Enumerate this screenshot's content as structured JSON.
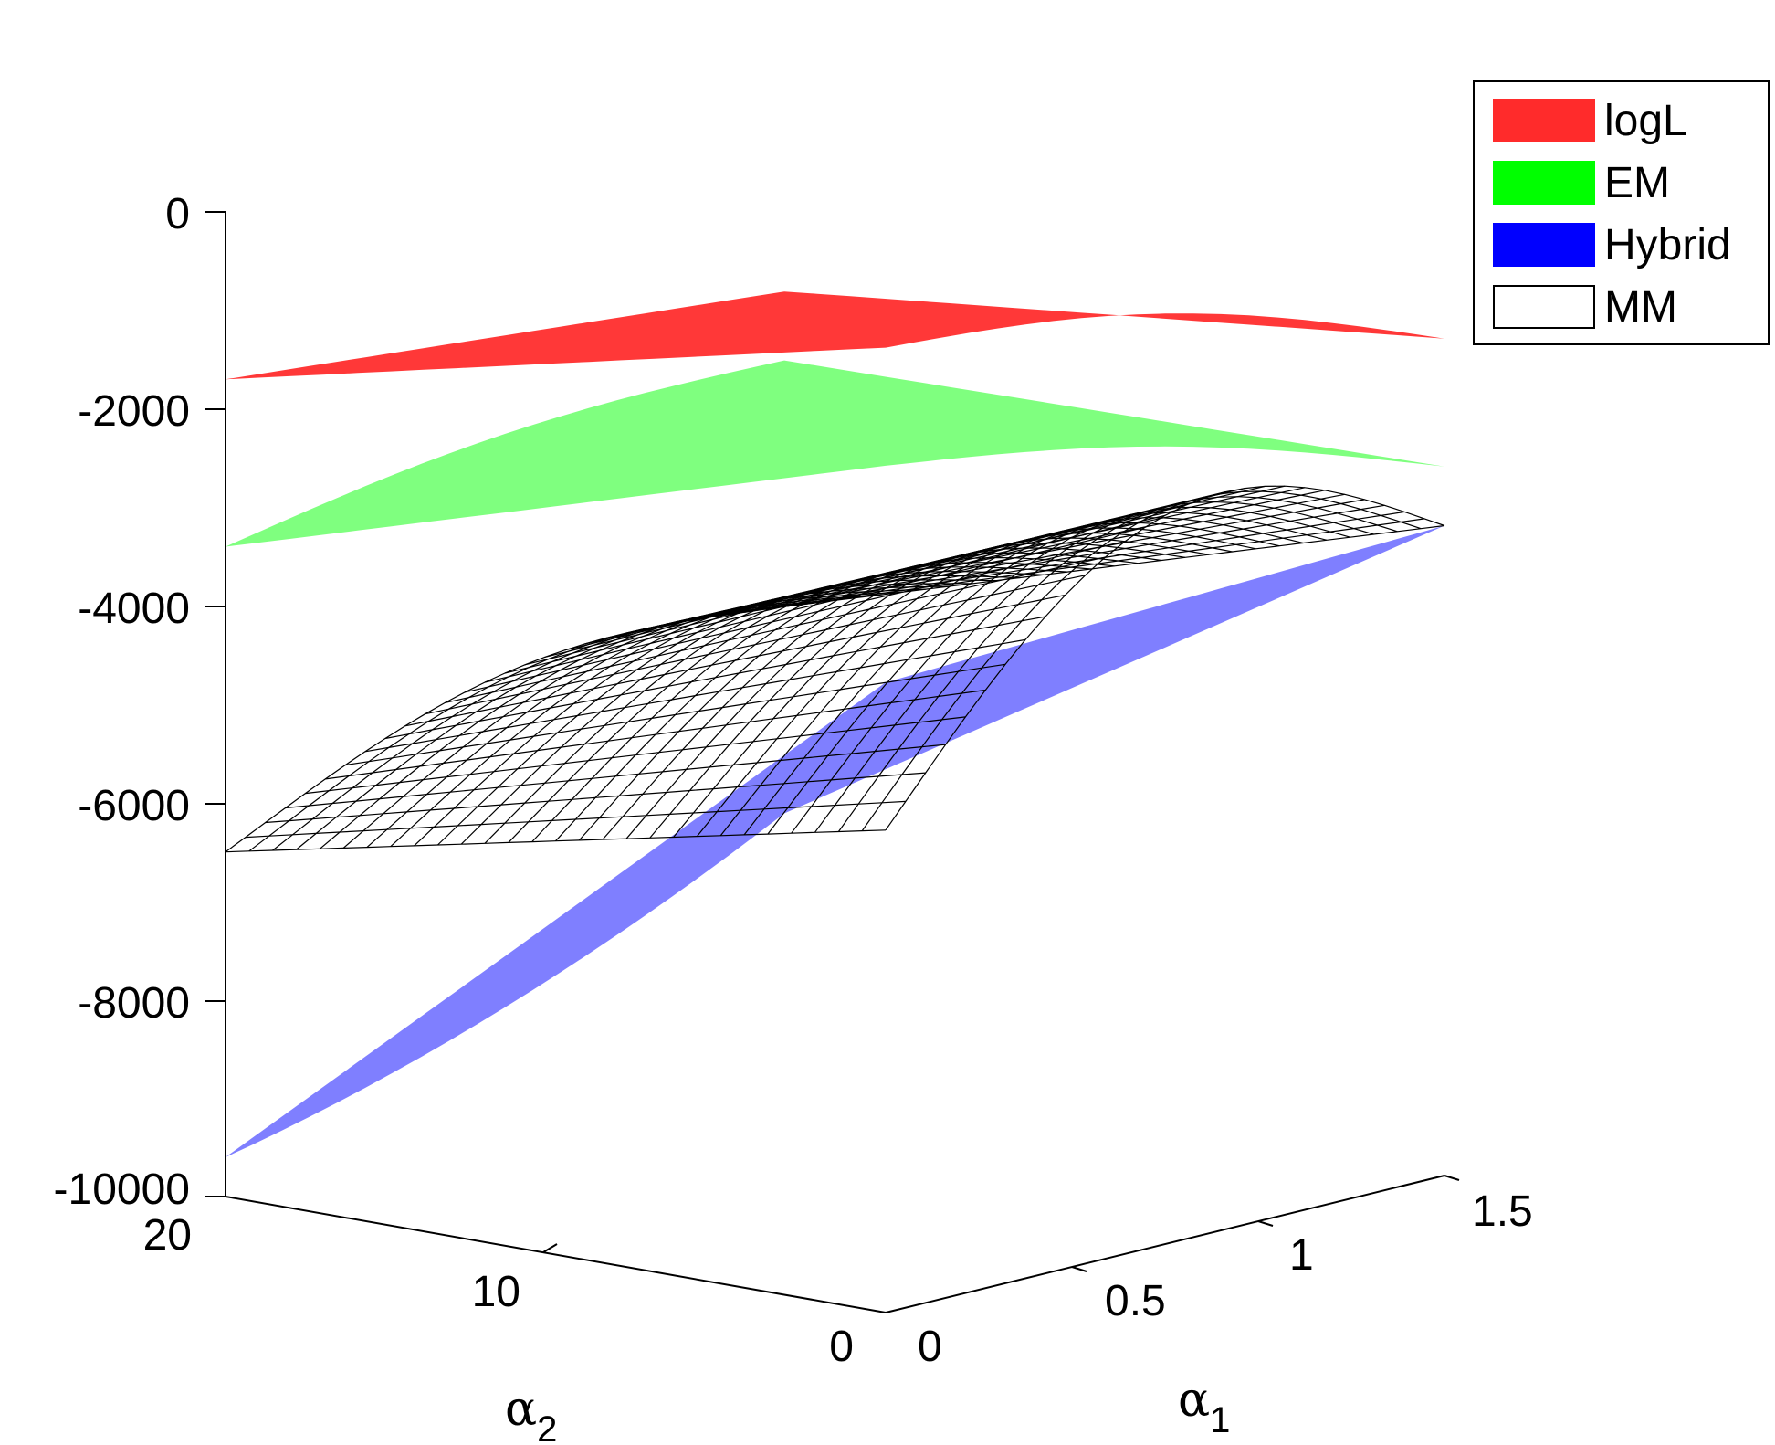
{
  "chart_data": {
    "type": "surface3d",
    "title": "",
    "xlabel": "α",
    "xlabel_sub": "1",
    "ylabel": "α",
    "ylabel_sub": "2",
    "zlabel": "",
    "xlim": [
      0,
      1.5
    ],
    "ylim": [
      0,
      20
    ],
    "zlim": [
      -10000,
      0
    ],
    "x_ticks": [
      "0",
      "0.5",
      "1",
      "1.5"
    ],
    "y_ticks": [
      "0",
      "10",
      "20"
    ],
    "z_ticks": [
      "0",
      "-2000",
      "-4000",
      "-6000",
      "-8000",
      "-10000"
    ],
    "grid": false,
    "legend_position": "top-right",
    "series": [
      {
        "name": "logL",
        "color": "#ff0000",
        "style": "transparent surface",
        "corner_values": {
          "a1_0_a2_0": -200,
          "a1_0_a2_20": -1700,
          "a1_1.5_a2_0": -1500,
          "a1_1.5_a2_20": -2200
        }
      },
      {
        "name": "EM",
        "color": "#00ff00",
        "style": "transparent surface",
        "corner_values": {
          "a1_0_a2_0": -1400,
          "a1_0_a2_20": -3400,
          "a1_1.5_a2_0": -2800,
          "a1_1.5_a2_20": -2900
        }
      },
      {
        "name": "Hybrid",
        "color": "#0000ff",
        "style": "transparent surface",
        "corner_values": {
          "a1_0_a2_0": -3600,
          "a1_0_a2_20": -9600,
          "a1_1.5_a2_0": -3400,
          "a1_1.5_a2_20": -7500
        }
      },
      {
        "name": "MM",
        "color": "#ffffff",
        "style": "mesh surface",
        "corner_values": {
          "a1_0_a2_0": -5100,
          "a1_0_a2_20": -6500,
          "a1_1.5_a2_0": -3400,
          "a1_1.5_a2_20": -5400
        }
      }
    ]
  }
}
